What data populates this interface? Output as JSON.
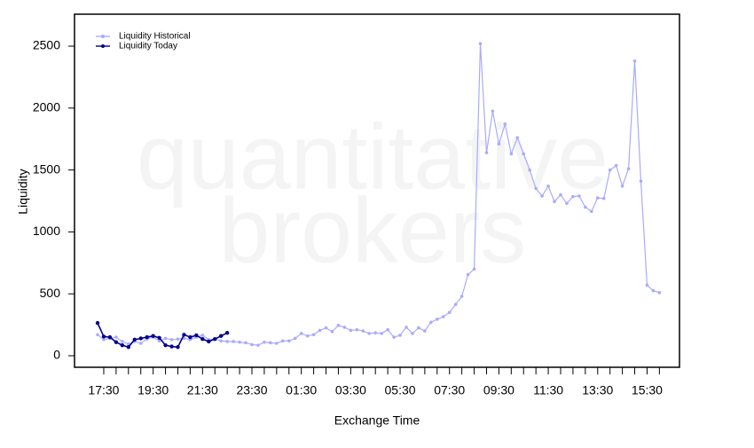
{
  "chart_data": {
    "type": "line",
    "watermark_lines": [
      "quantitative",
      "brokers"
    ],
    "x_label": "Exchange Time",
    "y_label": "Liquidity",
    "categories": [
      null,
      "17:30",
      null,
      null,
      null,
      null,
      null,
      null,
      null,
      "19:30",
      null,
      null,
      null,
      null,
      null,
      null,
      null,
      "21:30",
      null,
      null,
      null,
      null,
      null,
      null,
      null,
      "23:30",
      null,
      null,
      null,
      null,
      null,
      null,
      null,
      "01:30",
      null,
      null,
      null,
      null,
      null,
      null,
      null,
      "03:30",
      null,
      null,
      null,
      null,
      null,
      null,
      null,
      "05:30",
      null,
      null,
      null,
      null,
      null,
      null,
      null,
      "07:30",
      null,
      null,
      null,
      null,
      null,
      null,
      null,
      "09:30",
      null,
      null,
      null,
      null,
      null,
      null,
      null,
      "11:30",
      null,
      null,
      null,
      null,
      null,
      null,
      null,
      "13:30",
      null,
      null,
      null,
      null,
      null,
      null,
      null,
      "15:30",
      null,
      null
    ],
    "series": [
      {
        "name": "Liquidity Historical",
        "color": "#aaaaff",
        "values": [
          170,
          130,
          140,
          150,
          115,
          95,
          115,
          100,
          135,
          150,
          120,
          140,
          130,
          135,
          140,
          130,
          150,
          165,
          130,
          135,
          120,
          115,
          115,
          110,
          105,
          90,
          85,
          110,
          105,
          100,
          120,
          120,
          140,
          180,
          160,
          170,
          205,
          225,
          195,
          245,
          230,
          205,
          210,
          200,
          180,
          185,
          180,
          210,
          150,
          165,
          230,
          180,
          225,
          200,
          270,
          295,
          315,
          350,
          415,
          480,
          655,
          700,
          2520,
          1640,
          1975,
          1710,
          1870,
          1630,
          1760,
          1630,
          1500,
          1350,
          1290,
          1370,
          1245,
          1300,
          1230,
          1285,
          1290,
          1200,
          1165,
          1275,
          1270,
          1500,
          1535,
          1370,
          1510,
          2380,
          1410,
          570,
          525,
          510
        ]
      },
      {
        "name": "Liquidity Today",
        "color": "#00008b",
        "values": [
          265,
          155,
          150,
          110,
          85,
          70,
          130,
          140,
          150,
          160,
          145,
          85,
          75,
          70,
          170,
          150,
          165,
          135,
          115,
          135,
          160,
          185,
          null,
          null,
          null,
          null,
          null,
          null,
          null,
          null,
          null,
          null,
          null,
          null,
          null,
          null,
          null,
          null,
          null,
          null,
          null,
          null,
          null,
          null,
          null,
          null,
          null,
          null,
          null,
          null,
          null,
          null,
          null,
          null,
          null,
          null,
          null,
          null,
          null,
          null,
          null,
          null,
          null,
          null,
          null,
          null,
          null,
          null,
          null,
          null,
          null,
          null,
          null,
          null,
          null,
          null,
          null,
          null,
          null,
          null,
          null,
          null,
          null,
          null,
          null,
          null,
          null,
          null,
          null,
          null,
          null,
          null
        ]
      }
    ],
    "ylim": [
      -93,
      2758
    ],
    "yticks": [
      0,
      500,
      1000,
      1500,
      2000,
      2500
    ],
    "legend": "top-left",
    "grid": false
  }
}
